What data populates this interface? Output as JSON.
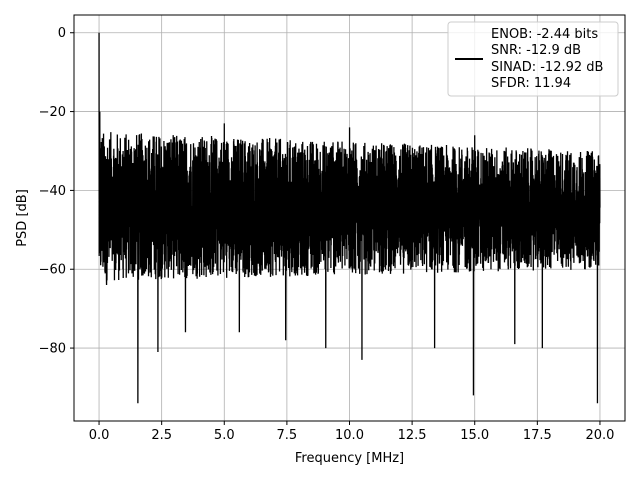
{
  "chart_data": {
    "type": "line",
    "title": "",
    "xlabel": "Frequency [MHz]",
    "ylabel": "PSD [dB]",
    "xlim": [
      -1.0,
      21.0
    ],
    "ylim": [
      -98.5,
      4.5
    ],
    "xticks": [
      0.0,
      2.5,
      5.0,
      7.5,
      10.0,
      12.5,
      15.0,
      17.5,
      20.0
    ],
    "xtick_labels": [
      "0.0",
      "2.5",
      "5.0",
      "7.5",
      "10.0",
      "12.5",
      "15.0",
      "17.5",
      "20.0"
    ],
    "yticks": [
      0,
      -20,
      -40,
      -60,
      -80
    ],
    "ytick_labels": [
      "0",
      "−20",
      "−40",
      "−60",
      "−80"
    ],
    "grid": true,
    "legend_position": "top-right",
    "legend_lines": [
      "ENOB: -2.44 bits",
      "SNR: -12.9 dB",
      "SINAD: -12.92 dB",
      "SFDR: 11.94"
    ],
    "series": [
      {
        "color": "#000000",
        "x_range": [
          0.0,
          20.0
        ],
        "noise_band_start": [
          -63,
          -25
        ],
        "noise_band_end": [
          -60,
          -30
        ],
        "peaks": [
          {
            "x": 0.0,
            "y": 0.0
          },
          {
            "x": 0.03,
            "y": -20.0
          },
          {
            "x": 5.0,
            "y": -23.0
          },
          {
            "x": 10.0,
            "y": -24.0
          },
          {
            "x": 15.0,
            "y": -26.0
          }
        ],
        "dips": [
          {
            "x": 0.3,
            "y": -64.0
          },
          {
            "x": 1.55,
            "y": -94.0
          },
          {
            "x": 2.35,
            "y": -81.0
          },
          {
            "x": 3.45,
            "y": -76.0
          },
          {
            "x": 5.6,
            "y": -76.0
          },
          {
            "x": 7.45,
            "y": -78.0
          },
          {
            "x": 9.05,
            "y": -80.0
          },
          {
            "x": 10.5,
            "y": -83.0
          },
          {
            "x": 13.4,
            "y": -80.0
          },
          {
            "x": 14.95,
            "y": -92.0
          },
          {
            "x": 16.6,
            "y": -79.0
          },
          {
            "x": 17.7,
            "y": -80.0
          },
          {
            "x": 19.9,
            "y": -94.0
          }
        ]
      }
    ]
  }
}
